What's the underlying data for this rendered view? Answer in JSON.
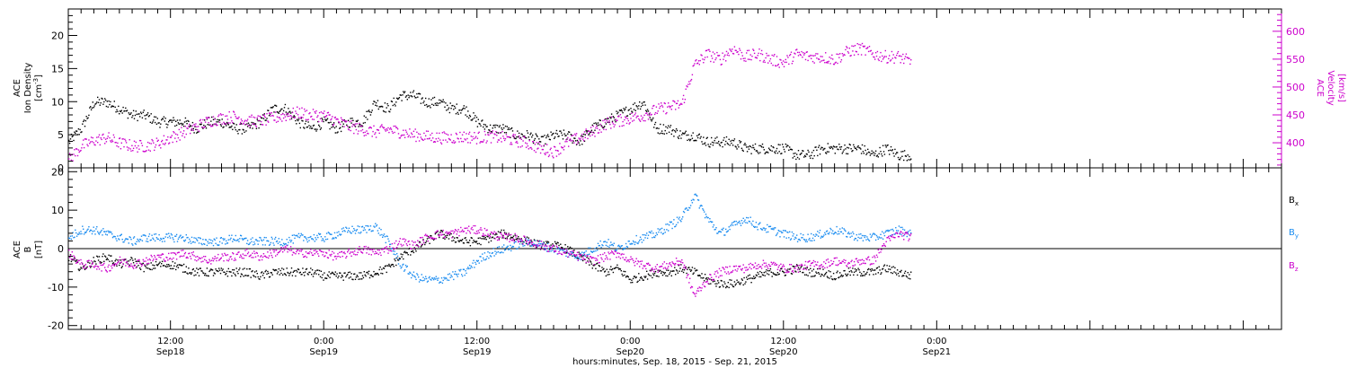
{
  "colors": {
    "black": "#000000",
    "magenta": "#cc00cc",
    "blue": "#1a8cf0"
  },
  "x_axis": {
    "title": "hours:minutes, Sep. 18, 2015 - Sep. 21, 2015",
    "range_hours": [
      4,
      99
    ],
    "ticks": [
      {
        "h": 12,
        "top": "12:00",
        "bottom": "Sep18"
      },
      {
        "h": 24,
        "top": "0:00",
        "bottom": "Sep19"
      },
      {
        "h": 36,
        "top": "12:00",
        "bottom": "Sep19"
      },
      {
        "h": 48,
        "top": "0:00",
        "bottom": "Sep20"
      },
      {
        "h": 60,
        "top": "12:00",
        "bottom": "Sep20"
      },
      {
        "h": 72,
        "top": "0:00",
        "bottom": "Sep21"
      }
    ]
  },
  "chart_data": [
    {
      "type": "scatter",
      "panel": "top",
      "left_axis": {
        "label_lines": [
          "ACE",
          "Ion Density"
        ],
        "unit_text": "[cm",
        "unit_sup": "-3",
        "unit_end": "]",
        "range": [
          0,
          24
        ],
        "ticks": [
          "0",
          "5",
          "10",
          "15",
          "20"
        ],
        "tick_values": [
          0,
          5,
          10,
          15,
          20
        ]
      },
      "right_axis": {
        "label_lines": [
          "ACE",
          "Velocity"
        ],
        "unit": "[km/s]",
        "range": [
          355,
          640
        ],
        "ticks": [
          "400",
          "450",
          "500",
          "550",
          "600"
        ],
        "tick_values": [
          400,
          450,
          500,
          550,
          600
        ]
      },
      "series": [
        {
          "axis": "left",
          "color": "black",
          "x": [
            4,
            5,
            6,
            7,
            8,
            9,
            10,
            11,
            12,
            13,
            14,
            15,
            16,
            17,
            18,
            19,
            20,
            21,
            22,
            23,
            24,
            25,
            26,
            27,
            28,
            29,
            30,
            31,
            32,
            33,
            34,
            35,
            36,
            37,
            38,
            39,
            40,
            41,
            42,
            43,
            44,
            45,
            46,
            47,
            48,
            49,
            50,
            51,
            52,
            53,
            54,
            55,
            56,
            57,
            58,
            59,
            60,
            61,
            62,
            63,
            64,
            65,
            66,
            67,
            68,
            69,
            70
          ],
          "y": [
            4,
            6,
            10,
            10,
            9,
            8,
            8,
            7,
            7,
            7,
            6,
            7,
            7,
            6,
            6,
            7,
            9,
            9,
            7,
            6,
            7,
            6,
            7,
            7,
            10,
            9,
            11,
            11,
            10,
            10,
            9,
            9,
            7,
            6,
            6,
            5,
            5,
            4,
            5,
            5,
            4,
            6,
            7,
            8,
            9,
            10,
            6,
            6,
            5,
            5,
            4,
            4,
            4,
            3,
            3,
            3,
            3,
            2,
            2,
            3,
            3,
            3,
            3,
            2,
            3,
            2,
            2
          ]
        },
        {
          "axis": "right",
          "color": "magenta",
          "x": [
            4,
            5,
            6,
            7,
            8,
            9,
            10,
            11,
            12,
            13,
            14,
            15,
            16,
            17,
            18,
            19,
            20,
            21,
            22,
            23,
            24,
            25,
            26,
            27,
            28,
            29,
            30,
            31,
            32,
            33,
            34,
            35,
            36,
            37,
            38,
            39,
            40,
            41,
            42,
            43,
            44,
            45,
            46,
            47,
            48,
            49,
            50,
            51,
            52,
            53,
            54,
            55,
            56,
            57,
            58,
            59,
            60,
            61,
            62,
            63,
            64,
            65,
            66,
            67,
            68,
            69,
            70
          ],
          "y": [
            370,
            395,
            405,
            410,
            400,
            395,
            395,
            400,
            410,
            420,
            430,
            440,
            445,
            448,
            440,
            440,
            445,
            450,
            455,
            450,
            450,
            440,
            430,
            425,
            420,
            425,
            420,
            415,
            412,
            410,
            410,
            412,
            410,
            412,
            410,
            405,
            400,
            390,
            385,
            400,
            410,
            420,
            435,
            440,
            445,
            450,
            460,
            465,
            470,
            540,
            560,
            550,
            570,
            555,
            560,
            550,
            545,
            560,
            555,
            555,
            550,
            565,
            570,
            560,
            555,
            555,
            545
          ]
        }
      ]
    },
    {
      "type": "scatter",
      "panel": "bottom",
      "left_axis": {
        "label_lines": [
          "ACE",
          "B"
        ],
        "unit": "[nT]",
        "range": [
          -21,
          21
        ],
        "ticks": [
          "-20",
          "-10",
          "0",
          "10",
          "20"
        ],
        "tick_values": [
          -20,
          -10,
          0,
          10,
          20
        ]
      },
      "legend": [
        {
          "base": "B",
          "sub": "x",
          "color": "black"
        },
        {
          "base": "B",
          "sub": "y",
          "color": "blue"
        },
        {
          "base": "B",
          "sub": "z",
          "color": "magenta"
        }
      ],
      "series": [
        {
          "name": "Bx",
          "color": "black",
          "x": [
            4,
            5,
            6,
            7,
            8,
            9,
            10,
            11,
            12,
            13,
            14,
            15,
            16,
            17,
            18,
            19,
            20,
            21,
            22,
            23,
            24,
            25,
            26,
            27,
            28,
            29,
            30,
            31,
            32,
            33,
            34,
            35,
            36,
            37,
            38,
            39,
            40,
            41,
            42,
            43,
            44,
            45,
            46,
            47,
            48,
            49,
            50,
            51,
            52,
            53,
            54,
            55,
            56,
            57,
            58,
            59,
            60,
            61,
            62,
            63,
            64,
            65,
            66,
            67,
            68,
            69,
            70
          ],
          "y": [
            -2,
            -5,
            -3,
            -2,
            -4,
            -3,
            -5,
            -4,
            -4,
            -5,
            -6,
            -6,
            -6,
            -6,
            -6,
            -7,
            -6,
            -6,
            -6,
            -6,
            -7,
            -7,
            -7,
            -7,
            -6,
            -5,
            -2,
            0,
            2,
            4,
            3,
            2,
            2,
            3,
            4,
            3,
            2,
            1,
            1,
            0,
            -2,
            -4,
            -6,
            -5,
            -8,
            -7,
            -6,
            -6,
            -5,
            -6,
            -8,
            -9,
            -9,
            -8,
            -7,
            -6,
            -6,
            -5,
            -6,
            -6,
            -7,
            -6,
            -6,
            -6,
            -5,
            -6,
            -7
          ]
        },
        {
          "name": "By",
          "color": "blue",
          "x": [
            4,
            5,
            6,
            7,
            8,
            9,
            10,
            11,
            12,
            13,
            14,
            15,
            16,
            17,
            18,
            19,
            20,
            21,
            22,
            23,
            24,
            25,
            26,
            27,
            28,
            29,
            30,
            31,
            32,
            33,
            34,
            35,
            36,
            37,
            38,
            39,
            40,
            41,
            42,
            43,
            44,
            45,
            46,
            47,
            48,
            49,
            50,
            51,
            52,
            53,
            54,
            55,
            56,
            57,
            58,
            59,
            60,
            61,
            62,
            63,
            64,
            65,
            66,
            67,
            68,
            69,
            70
          ],
          "y": [
            3,
            5,
            5,
            4,
            3,
            2,
            3,
            3,
            3,
            3,
            2,
            2,
            2,
            3,
            2,
            2,
            2,
            2,
            3,
            3,
            3,
            4,
            5,
            5,
            6,
            2,
            -4,
            -7,
            -8,
            -8,
            -7,
            -6,
            -3,
            -1,
            0,
            1,
            2,
            1,
            0,
            -1,
            -2,
            0,
            2,
            0,
            2,
            3,
            4,
            6,
            8,
            14,
            8,
            4,
            6,
            8,
            6,
            5,
            4,
            3,
            3,
            4,
            5,
            4,
            3,
            3,
            4,
            5,
            4
          ]
        },
        {
          "name": "Bz",
          "color": "magenta",
          "x": [
            4,
            5,
            6,
            7,
            8,
            9,
            10,
            11,
            12,
            13,
            14,
            15,
            16,
            17,
            18,
            19,
            20,
            21,
            22,
            23,
            24,
            25,
            26,
            27,
            28,
            29,
            30,
            31,
            32,
            33,
            34,
            35,
            36,
            37,
            38,
            39,
            40,
            41,
            42,
            43,
            44,
            45,
            46,
            47,
            48,
            49,
            50,
            51,
            52,
            53,
            54,
            55,
            56,
            57,
            58,
            59,
            60,
            61,
            62,
            63,
            64,
            65,
            66,
            67,
            68,
            69,
            70
          ],
          "y": [
            -1,
            -4,
            -4,
            -5,
            -3,
            -4,
            -3,
            -2,
            -2,
            -1,
            -2,
            -3,
            -2,
            -2,
            -1,
            -2,
            -1,
            0,
            -1,
            -1,
            -1,
            -2,
            -1,
            0,
            -1,
            0,
            2,
            1,
            3,
            4,
            4,
            5,
            5,
            4,
            3,
            3,
            2,
            1,
            0,
            -1,
            -2,
            -3,
            -2,
            -1,
            -3,
            -4,
            -5,
            -4,
            -3,
            -12,
            -8,
            -6,
            -5,
            -5,
            -4,
            -4,
            -5,
            -5,
            -4,
            -4,
            -3,
            -4,
            -3,
            -3,
            2,
            4,
            3
          ]
        }
      ]
    }
  ]
}
